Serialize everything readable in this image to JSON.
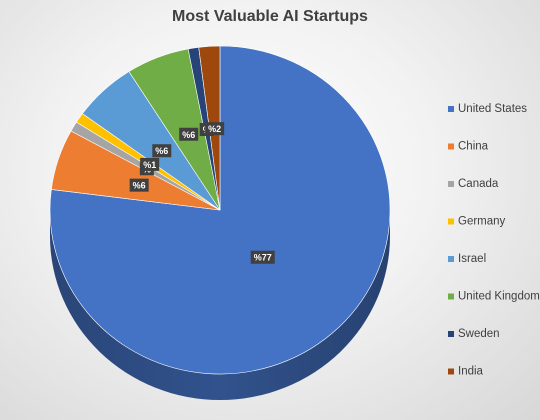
{
  "chart_data": {
    "type": "pie",
    "title": "Most Valuable AI Startups",
    "legend_position": "right",
    "slices": [
      {
        "name": "United States",
        "value": 77,
        "label": "%77",
        "color": "#4472C4"
      },
      {
        "name": "China",
        "value": 6,
        "label": "%6",
        "color": "#ED7D31"
      },
      {
        "name": "Canada",
        "value": 1,
        "label": "%",
        "color": "#A5A5A5"
      },
      {
        "name": "Germany",
        "value": 1,
        "label": "%1",
        "color": "#FFC000"
      },
      {
        "name": "Israel",
        "value": 6,
        "label": "%6",
        "color": "#5B9BD5"
      },
      {
        "name": "United Kingdom",
        "value": 6,
        "label": "%6",
        "color": "#70AD47"
      },
      {
        "name": "Sweden",
        "value": 1,
        "label": "%",
        "color": "#264478"
      },
      {
        "name": "India",
        "value": 2,
        "label": "%2",
        "color": "#9E480E"
      }
    ]
  }
}
